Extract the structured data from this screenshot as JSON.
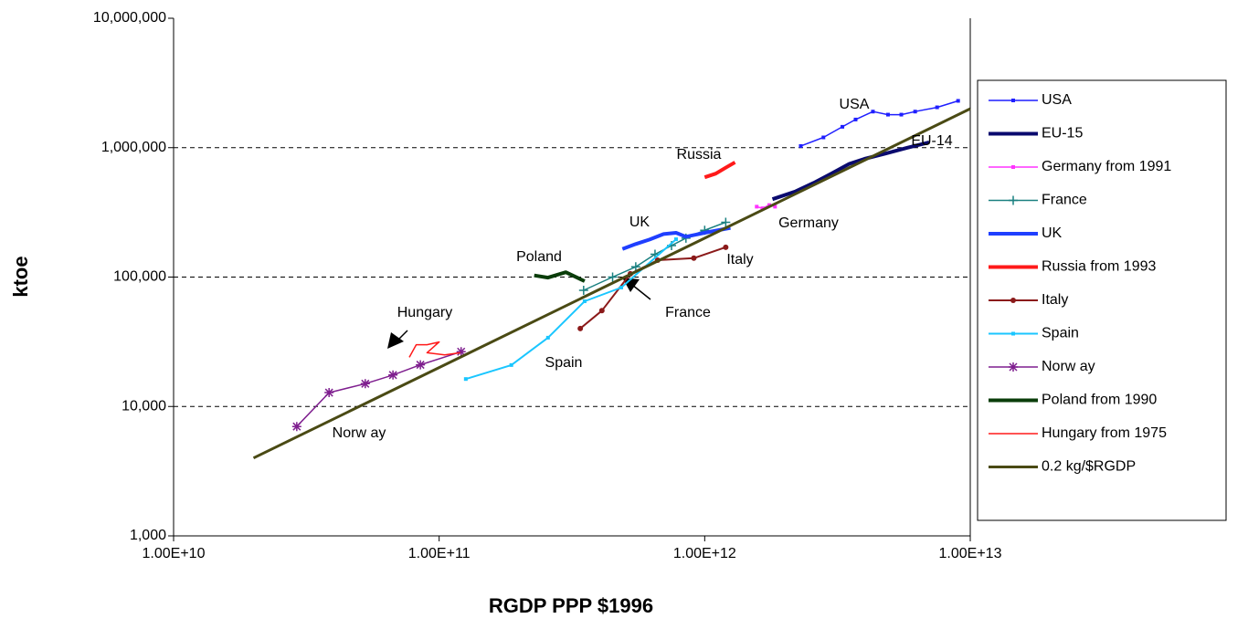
{
  "chart_data": {
    "type": "line",
    "x_label": "RGDP PPP $1996",
    "y_label": "ktoe",
    "xscale": "log",
    "yscale": "log",
    "grid": true,
    "legend": "right",
    "xlim": [
      10000000000,
      10000000000000
    ],
    "ylim": [
      1000,
      10000000
    ],
    "xticks": [
      {
        "value": 10000000000,
        "label": "1.00E+10"
      },
      {
        "value": 100000000000,
        "label": "1.00E+11"
      },
      {
        "value": 1000000000000,
        "label": "1.00E+12"
      },
      {
        "value": 10000000000000,
        "label": "1.00E+13"
      }
    ],
    "yticks": [
      {
        "value": 1000,
        "label": "1,000"
      },
      {
        "value": 10000,
        "label": "10,000"
      },
      {
        "value": 100000,
        "label": "100,000"
      },
      {
        "value": 1000000,
        "label": "1,000,000"
      },
      {
        "value": 10000000,
        "label": "10,000,000"
      }
    ],
    "series": [
      {
        "name": "USA",
        "color": "#1f1fff",
        "line_width": 1.5,
        "marker": "square",
        "x": [
          2300000000000,
          2800000000000,
          3300000000000,
          3700000000000,
          4300000000000,
          4900000000000,
          5500000000000,
          6200000000000,
          7500000000000,
          9000000000000
        ],
        "values": [
          1030000,
          1200000,
          1450000,
          1650000,
          1900000,
          1800000,
          1800000,
          1900000,
          2050000,
          2300000
        ]
      },
      {
        "name": "EU-15",
        "color": "#0a0a6e",
        "line_width": 4,
        "marker": "none",
        "x": [
          1800000000000,
          2200000000000,
          2600000000000,
          3000000000000,
          3500000000000,
          4000000000000,
          4800000000000,
          5800000000000,
          7000000000000
        ],
        "values": [
          400000,
          460000,
          540000,
          630000,
          750000,
          820000,
          900000,
          1000000,
          1100000
        ]
      },
      {
        "name": "Germany from 1991",
        "color": "#ff33ff",
        "line_width": 1.5,
        "marker": "square",
        "x": [
          1570000000000,
          1650000000000,
          1750000000000,
          1840000000000
        ],
        "values": [
          350000,
          340000,
          360000,
          350000
        ]
      },
      {
        "name": "France",
        "color": "#1a8080",
        "line_width": 1.5,
        "marker": "plus",
        "x": [
          350000000000,
          450000000000,
          550000000000,
          650000000000,
          750000000000,
          850000000000,
          1000000000000,
          1200000000000
        ],
        "values": [
          79000,
          100000,
          120000,
          150000,
          175000,
          200000,
          230000,
          265000
        ]
      },
      {
        "name": "UK",
        "color": "#1f3fff",
        "line_width": 4,
        "marker": "none",
        "x": [
          490000000000,
          550000000000,
          620000000000,
          700000000000,
          780000000000,
          850000000000,
          1000000000000,
          1250000000000
        ],
        "values": [
          165000,
          180000,
          195000,
          215000,
          220000,
          205000,
          220000,
          240000
        ]
      },
      {
        "name": "Russia from 1993",
        "color": "#ff1a1a",
        "line_width": 4,
        "marker": "none",
        "x": [
          1000000000000,
          1100000000000,
          1200000000000,
          1300000000000
        ],
        "values": [
          590000,
          630000,
          700000,
          770000
        ]
      },
      {
        "name": "Italy",
        "color": "#8b1a1a",
        "line_width": 2,
        "marker": "dot",
        "x": [
          340000000000,
          410000000000,
          525000000000,
          665000000000,
          910000000000,
          1200000000000
        ],
        "values": [
          40000,
          55000,
          106000,
          135000,
          140000,
          170000
        ]
      },
      {
        "name": "Spain",
        "color": "#1ac6ff",
        "line_width": 2,
        "marker": "square",
        "x": [
          126000000000,
          187000000000,
          257000000000,
          353000000000,
          485000000000,
          780000000000
        ],
        "values": [
          16300,
          20900,
          34000,
          65000,
          83000,
          196000
        ]
      },
      {
        "name": "Norw ay",
        "color": "#7f1f8f",
        "line_width": 1.5,
        "marker": "star",
        "x": [
          29100000000,
          38500000000,
          52700000000,
          67000000000,
          85000000000,
          121000000000
        ],
        "values": [
          7000,
          12800,
          15000,
          17500,
          21000,
          26500
        ]
      },
      {
        "name": "Poland from 1990",
        "color": "#0a3d0a",
        "line_width": 4,
        "marker": "none",
        "x": [
          228000000000,
          257000000000,
          300000000000,
          353000000000
        ],
        "values": [
          103000,
          99000,
          109000,
          93000
        ]
      },
      {
        "name": "Hungary from 1975",
        "color": "#ff1a1a",
        "line_width": 1.5,
        "marker": "none",
        "x": [
          77200000000,
          82000000000,
          90000000000,
          100000000000,
          90000000000,
          105000000000,
          120000000000
        ],
        "values": [
          24000,
          30000,
          30000,
          31500,
          26000,
          25000,
          26000
        ]
      },
      {
        "name": "0.2 kg/$RGDP",
        "color": "#4a4a14",
        "line_width": 3,
        "marker": "none",
        "x": [
          20000000000,
          10000000000000
        ],
        "values": [
          4000,
          2000000
        ]
      }
    ],
    "annotations": [
      "USA",
      "EU-14",
      "Russia",
      "Germany",
      "UK",
      "Poland",
      "Italy",
      "France",
      "Hungary",
      "Spain",
      "Norw ay"
    ]
  }
}
